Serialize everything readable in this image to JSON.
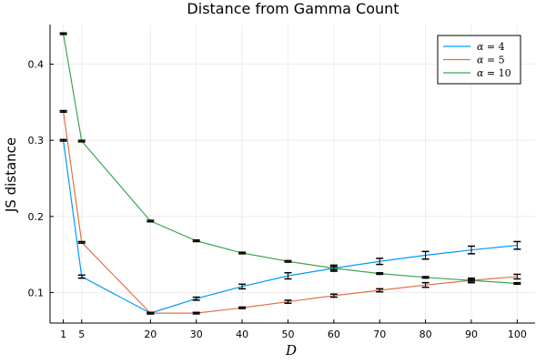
{
  "chart_data": {
    "type": "line",
    "title": "Distance from Gamma Count",
    "xlabel": "D",
    "ylabel": "JS distance",
    "x": [
      1,
      5,
      20,
      30,
      40,
      50,
      60,
      70,
      80,
      90,
      100
    ],
    "x_ticks": [
      1,
      5,
      20,
      30,
      40,
      50,
      60,
      70,
      80,
      90,
      100
    ],
    "y_ticks": [
      0.1,
      0.2,
      0.3,
      0.4
    ],
    "y_tick_labels": [
      "0.1",
      "0.2",
      "0.3",
      "0.4"
    ],
    "xlim": [
      -1.9,
      103.9
    ],
    "ylim": [
      0.06,
      0.452
    ],
    "grid": true,
    "legend_position": "top-right",
    "series": [
      {
        "name": "α = 4",
        "name_var": "α",
        "name_val": "= 4",
        "color": "#009AFA",
        "values": [
          0.3,
          0.121,
          0.073,
          0.092,
          0.108,
          0.122,
          0.132,
          0.141,
          0.149,
          0.156,
          0.162
        ],
        "errors": [
          0.001,
          0.002,
          0.001,
          0.002,
          0.003,
          0.004,
          0.004,
          0.004,
          0.005,
          0.005,
          0.005
        ]
      },
      {
        "name": "α = 5",
        "name_var": "α",
        "name_val": "= 5",
        "color": "#E36F47",
        "values": [
          0.338,
          0.166,
          0.073,
          0.073,
          0.08,
          0.088,
          0.096,
          0.103,
          0.11,
          0.116,
          0.121
        ],
        "errors": [
          0.001,
          0.001,
          0.001,
          0.001,
          0.001,
          0.002,
          0.002,
          0.002,
          0.003,
          0.003,
          0.003
        ]
      },
      {
        "name": "α = 10",
        "name_var": "α",
        "name_val": "= 10",
        "color": "#3EA44E",
        "values": [
          0.44,
          0.299,
          0.194,
          0.168,
          0.152,
          0.141,
          0.132,
          0.125,
          0.12,
          0.116,
          0.112
        ],
        "errors": [
          0.001,
          0.001,
          0.001,
          0.001,
          0.001,
          0.001,
          0.002,
          0.001,
          0.001,
          0.001,
          0.001
        ]
      }
    ]
  }
}
